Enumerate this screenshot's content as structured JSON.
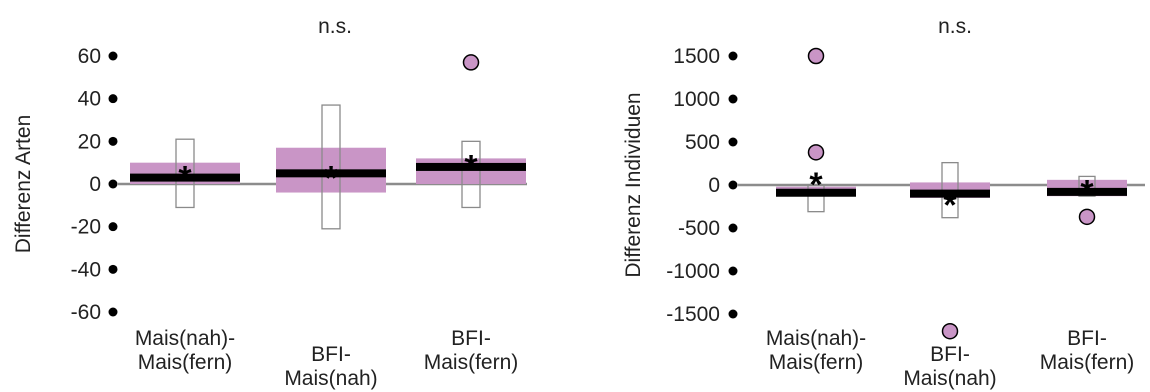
{
  "colors": {
    "box_fill": "#c995c6",
    "median": "#000000",
    "whisker_box_stroke": "#8a8a8a",
    "zero_line": "#8c8c8c",
    "outlier_fill": "#c995c6",
    "text": "#222222"
  },
  "chart_data": [
    {
      "type": "box",
      "title": "n.s.",
      "ylabel": "Differenz Arten",
      "ylim": [
        -60,
        60
      ],
      "yticks": [
        "60",
        "40",
        "20",
        "0",
        "-20",
        "-40",
        "-60"
      ],
      "ytick_values": [
        60,
        40,
        20,
        0,
        -20,
        -40,
        -60
      ],
      "grid": false,
      "categories": [
        {
          "line1": "Mais(nah)-",
          "line2": "Mais(fern)",
          "line1_offset": 0
        },
        {
          "line1": "BFI-",
          "line2": "Mais(nah)",
          "line1_offset": 1
        },
        {
          "line1": "BFI-",
          "line2": "Mais(fern)",
          "line1_offset": 0
        }
      ],
      "boxes": [
        {
          "q1": 0,
          "q3": 10,
          "median": 3,
          "mean": 5,
          "whisker_low": -11,
          "whisker_high": 21,
          "outliers": []
        },
        {
          "q1": -4,
          "q3": 17,
          "median": 5,
          "mean": 5,
          "whisker_low": -21,
          "whisker_high": 37,
          "outliers": []
        },
        {
          "q1": 0,
          "q3": 12,
          "median": 8,
          "mean": 10,
          "whisker_low": -11,
          "whisker_high": 20,
          "outliers": [
            57
          ]
        }
      ]
    },
    {
      "type": "box",
      "title": "n.s.",
      "ylabel": "Differenz Individuen",
      "ylim": [
        -1500,
        1500
      ],
      "yticks": [
        "1500",
        "1000",
        "500",
        "0",
        "-500",
        "-1000",
        "-1500"
      ],
      "ytick_values": [
        1500,
        1000,
        500,
        0,
        -500,
        -1000,
        -1500
      ],
      "grid": false,
      "categories": [
        {
          "line1": "Mais(nah)-",
          "line2": "Mais(fern)",
          "line1_offset": 0
        },
        {
          "line1": "BFI-",
          "line2": "Mais(nah)",
          "line1_offset": 1
        },
        {
          "line1": "BFI-",
          "line2": "Mais(fern)",
          "line1_offset": 0
        }
      ],
      "boxes": [
        {
          "q1": -100,
          "q3": -20,
          "median": -90,
          "mean": 60,
          "whisker_low": -310,
          "whisker_high": 0,
          "outliers": [
            1500,
            380
          ]
        },
        {
          "q1": -150,
          "q3": 30,
          "median": -100,
          "mean": -180,
          "whisker_low": -380,
          "whisker_high": 260,
          "outliers": [
            -1700
          ]
        },
        {
          "q1": -130,
          "q3": 60,
          "median": -80,
          "mean": -30,
          "whisker_low": -130,
          "whisker_high": 100,
          "outliers": [
            -370
          ]
        }
      ]
    }
  ]
}
